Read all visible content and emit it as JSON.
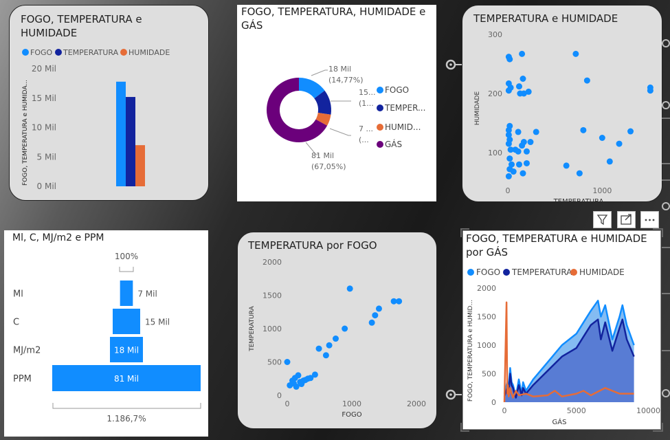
{
  "c1": {
    "title": "FOGO, TEMPERATURA e HUMIDADE",
    "legend": [
      "FOGO",
      "TEMPERATURA",
      "HUMIDADE"
    ],
    "ylabel": "FOGO, TEMPERATURA e HUMIDA...",
    "yticks": [
      "20 Mil",
      "15 Mil",
      "10 Mil",
      "5 Mil",
      "0 Mil"
    ]
  },
  "c2": {
    "title": "FOGO, TEMPERATURA, HUMIDADE e GÁS",
    "labels": {
      "fogo_value": "18 Mil",
      "fogo_pct": "(14,77%)",
      "temp_value": "15...",
      "temp_pct": "(1...",
      "hum_value": "7 ...",
      "hum_pct": "(...",
      "gas_value": "81 Mil",
      "gas_pct": "(67,05%)"
    },
    "legend": [
      "FOGO",
      "TEMPER...",
      "HUMID...",
      "GÁS"
    ]
  },
  "c3": {
    "title": "TEMPERATURA e HUMIDADE",
    "xlabel": "TEMPERATURA",
    "ylabel": "HUMIDADE",
    "xticks": [
      "0",
      "1000"
    ],
    "yticks": [
      "300",
      "200",
      "100"
    ]
  },
  "c4": {
    "title": "Ml, C, MJ/m2 e PPM",
    "top_label": "100%",
    "bottom_label": "1.186,7%",
    "rows": [
      {
        "label": "Ml",
        "value_label": "7 Mil"
      },
      {
        "label": "C",
        "value_label": "15 Mil"
      },
      {
        "label": "MJ/m2",
        "value_label": "18 Mil"
      },
      {
        "label": "PPM",
        "value_label": "81 Mil"
      }
    ]
  },
  "c5": {
    "title": "TEMPERATURA por FOGO",
    "xlabel": "FOGO",
    "ylabel": "TEMPERATURA",
    "xticks": [
      "0",
      "1000",
      "2000"
    ],
    "yticks": [
      "2000",
      "1500",
      "1000",
      "500",
      "0"
    ]
  },
  "c6": {
    "title": "FOGO, TEMPERATURA e HUMIDADE por GÁS",
    "legend": [
      "FOGO",
      "TEMPERATURA",
      "HUMIDADE"
    ],
    "xlabel": "GÁS",
    "ylabel": "FOGO, TEMPERATURA e HUMID...",
    "xticks": [
      "0",
      "5000",
      "10000"
    ],
    "yticks": [
      "2000",
      "1500",
      "1000",
      "500",
      "0"
    ]
  },
  "colors": {
    "fogo": "#118dff",
    "temperatura": "#12239e",
    "humidade": "#e66c37",
    "gas": "#6b007b"
  },
  "toolbar_icons": [
    "filter-icon",
    "focus-mode-icon",
    "more-options-icon"
  ],
  "chart_data": [
    {
      "type": "bar",
      "categories": [
        "FOGO",
        "TEMPERATURA",
        "HUMIDADE"
      ],
      "values": [
        17800,
        15200,
        7000
      ],
      "title": "FOGO, TEMPERATURA e HUMIDADE",
      "ylabel": "FOGO, TEMPERATURA e HUMIDA...",
      "ylim": [
        0,
        20000
      ]
    },
    {
      "type": "pie",
      "title": "FOGO, TEMPERATURA, HUMIDADE e GÁS",
      "categories": [
        "FOGO",
        "TEMPERATURA",
        "HUMIDADE",
        "GÁS"
      ],
      "values": [
        17800,
        15200,
        7000,
        81000
      ],
      "percentages": [
        14.77,
        12.6,
        5.8,
        67.05
      ]
    },
    {
      "type": "scatter",
      "title": "TEMPERATURA e HUMIDADE",
      "xlabel": "TEMPERATURA",
      "ylabel": "HUMIDADE",
      "xlim": [
        0,
        1500
      ],
      "ylim": [
        50,
        300
      ],
      "points": [
        [
          10,
          262
        ],
        [
          20,
          258
        ],
        [
          150,
          267
        ],
        [
          10,
          217
        ],
        [
          10,
          205
        ],
        [
          30,
          210
        ],
        [
          120,
          212
        ],
        [
          130,
          200
        ],
        [
          160,
          225
        ],
        [
          170,
          200
        ],
        [
          220,
          203
        ],
        [
          720,
          267
        ],
        [
          840,
          222
        ],
        [
          1510,
          210
        ],
        [
          1510,
          205
        ],
        [
          20,
          145
        ],
        [
          10,
          138
        ],
        [
          10,
          130
        ],
        [
          20,
          122
        ],
        [
          10,
          115
        ],
        [
          30,
          105
        ],
        [
          80,
          105
        ],
        [
          110,
          102
        ],
        [
          150,
          112
        ],
        [
          170,
          118
        ],
        [
          200,
          102
        ],
        [
          240,
          118
        ],
        [
          300,
          135
        ],
        [
          110,
          135
        ],
        [
          20,
          90
        ],
        [
          40,
          80
        ],
        [
          120,
          80
        ],
        [
          200,
          82
        ],
        [
          20,
          72
        ],
        [
          60,
          68
        ],
        [
          160,
          65
        ],
        [
          10,
          60
        ],
        [
          620,
          78
        ],
        [
          760,
          65
        ],
        [
          800,
          138
        ],
        [
          1000,
          125
        ],
        [
          1080,
          85
        ],
        [
          1180,
          115
        ],
        [
          1300,
          136
        ]
      ]
    },
    {
      "type": "bar",
      "title": "Ml, C, MJ/m2 e PPM",
      "categories": [
        "Ml",
        "C",
        "MJ/m2",
        "PPM"
      ],
      "values": [
        7000,
        15000,
        18000,
        81000
      ]
    },
    {
      "type": "scatter",
      "title": "TEMPERATURA por FOGO",
      "xlabel": "FOGO",
      "ylabel": "TEMPERATURA",
      "xlim": [
        0,
        2000
      ],
      "ylim": [
        0,
        2000
      ],
      "points": [
        [
          0,
          500
        ],
        [
          40,
          150
        ],
        [
          80,
          220
        ],
        [
          100,
          180
        ],
        [
          120,
          260
        ],
        [
          140,
          130
        ],
        [
          170,
          300
        ],
        [
          200,
          200
        ],
        [
          220,
          170
        ],
        [
          250,
          220
        ],
        [
          280,
          230
        ],
        [
          320,
          250
        ],
        [
          360,
          260
        ],
        [
          430,
          310
        ],
        [
          490,
          700
        ],
        [
          600,
          600
        ],
        [
          650,
          750
        ],
        [
          750,
          850
        ],
        [
          890,
          1000
        ],
        [
          970,
          1600
        ],
        [
          1310,
          1090
        ],
        [
          1360,
          1200
        ],
        [
          1420,
          1300
        ],
        [
          1650,
          1410
        ],
        [
          1730,
          1410
        ]
      ]
    },
    {
      "type": "area",
      "title": "FOGO, TEMPERATURA e HUMIDADE por GÁS",
      "xlabel": "GÁS",
      "ylabel": "FOGO, TEMPERATURA e HUMID...",
      "xlim": [
        0,
        10500
      ],
      "ylim": [
        0,
        2000
      ],
      "series": [
        {
          "name": "FOGO",
          "x": [
            0,
            200,
            300,
            400,
            500,
            600,
            700,
            800,
            1000,
            1200,
            1300,
            1500,
            2000,
            3000,
            4000,
            5000,
            5500,
            6000,
            6500,
            6700,
            7000,
            7500,
            8000,
            8200,
            8500,
            9000
          ],
          "y": [
            150,
            350,
            300,
            600,
            350,
            300,
            200,
            100,
            400,
            150,
            350,
            200,
            400,
            700,
            1000,
            1200,
            1400,
            1600,
            1780,
            1500,
            1700,
            1100,
            1500,
            1700,
            1350,
            1000
          ]
        },
        {
          "name": "TEMPERATURA",
          "x": [
            0,
            200,
            300,
            400,
            500,
            600,
            700,
            800,
            1000,
            1200,
            1300,
            1500,
            2000,
            3000,
            4000,
            5000,
            5500,
            6000,
            6500,
            6700,
            7000,
            7500,
            8000,
            8200,
            8500,
            9000
          ],
          "y": [
            100,
            250,
            200,
            500,
            300,
            250,
            150,
            80,
            300,
            120,
            250,
            150,
            300,
            550,
            800,
            950,
            1150,
            1350,
            1450,
            1100,
            1400,
            900,
            1300,
            1450,
            1100,
            800
          ]
        },
        {
          "name": "HUMIDADE",
          "x": [
            0,
            150,
            200,
            250,
            300,
            400,
            500,
            600,
            800,
            1000,
            1500,
            2000,
            3000,
            3500,
            4000,
            5000,
            5500,
            6000,
            7000,
            8000,
            9000
          ],
          "y": [
            0,
            1750,
            150,
            300,
            100,
            250,
            150,
            80,
            200,
            120,
            150,
            100,
            120,
            200,
            100,
            150,
            200,
            120,
            250,
            150,
            150
          ]
        }
      ]
    }
  ]
}
